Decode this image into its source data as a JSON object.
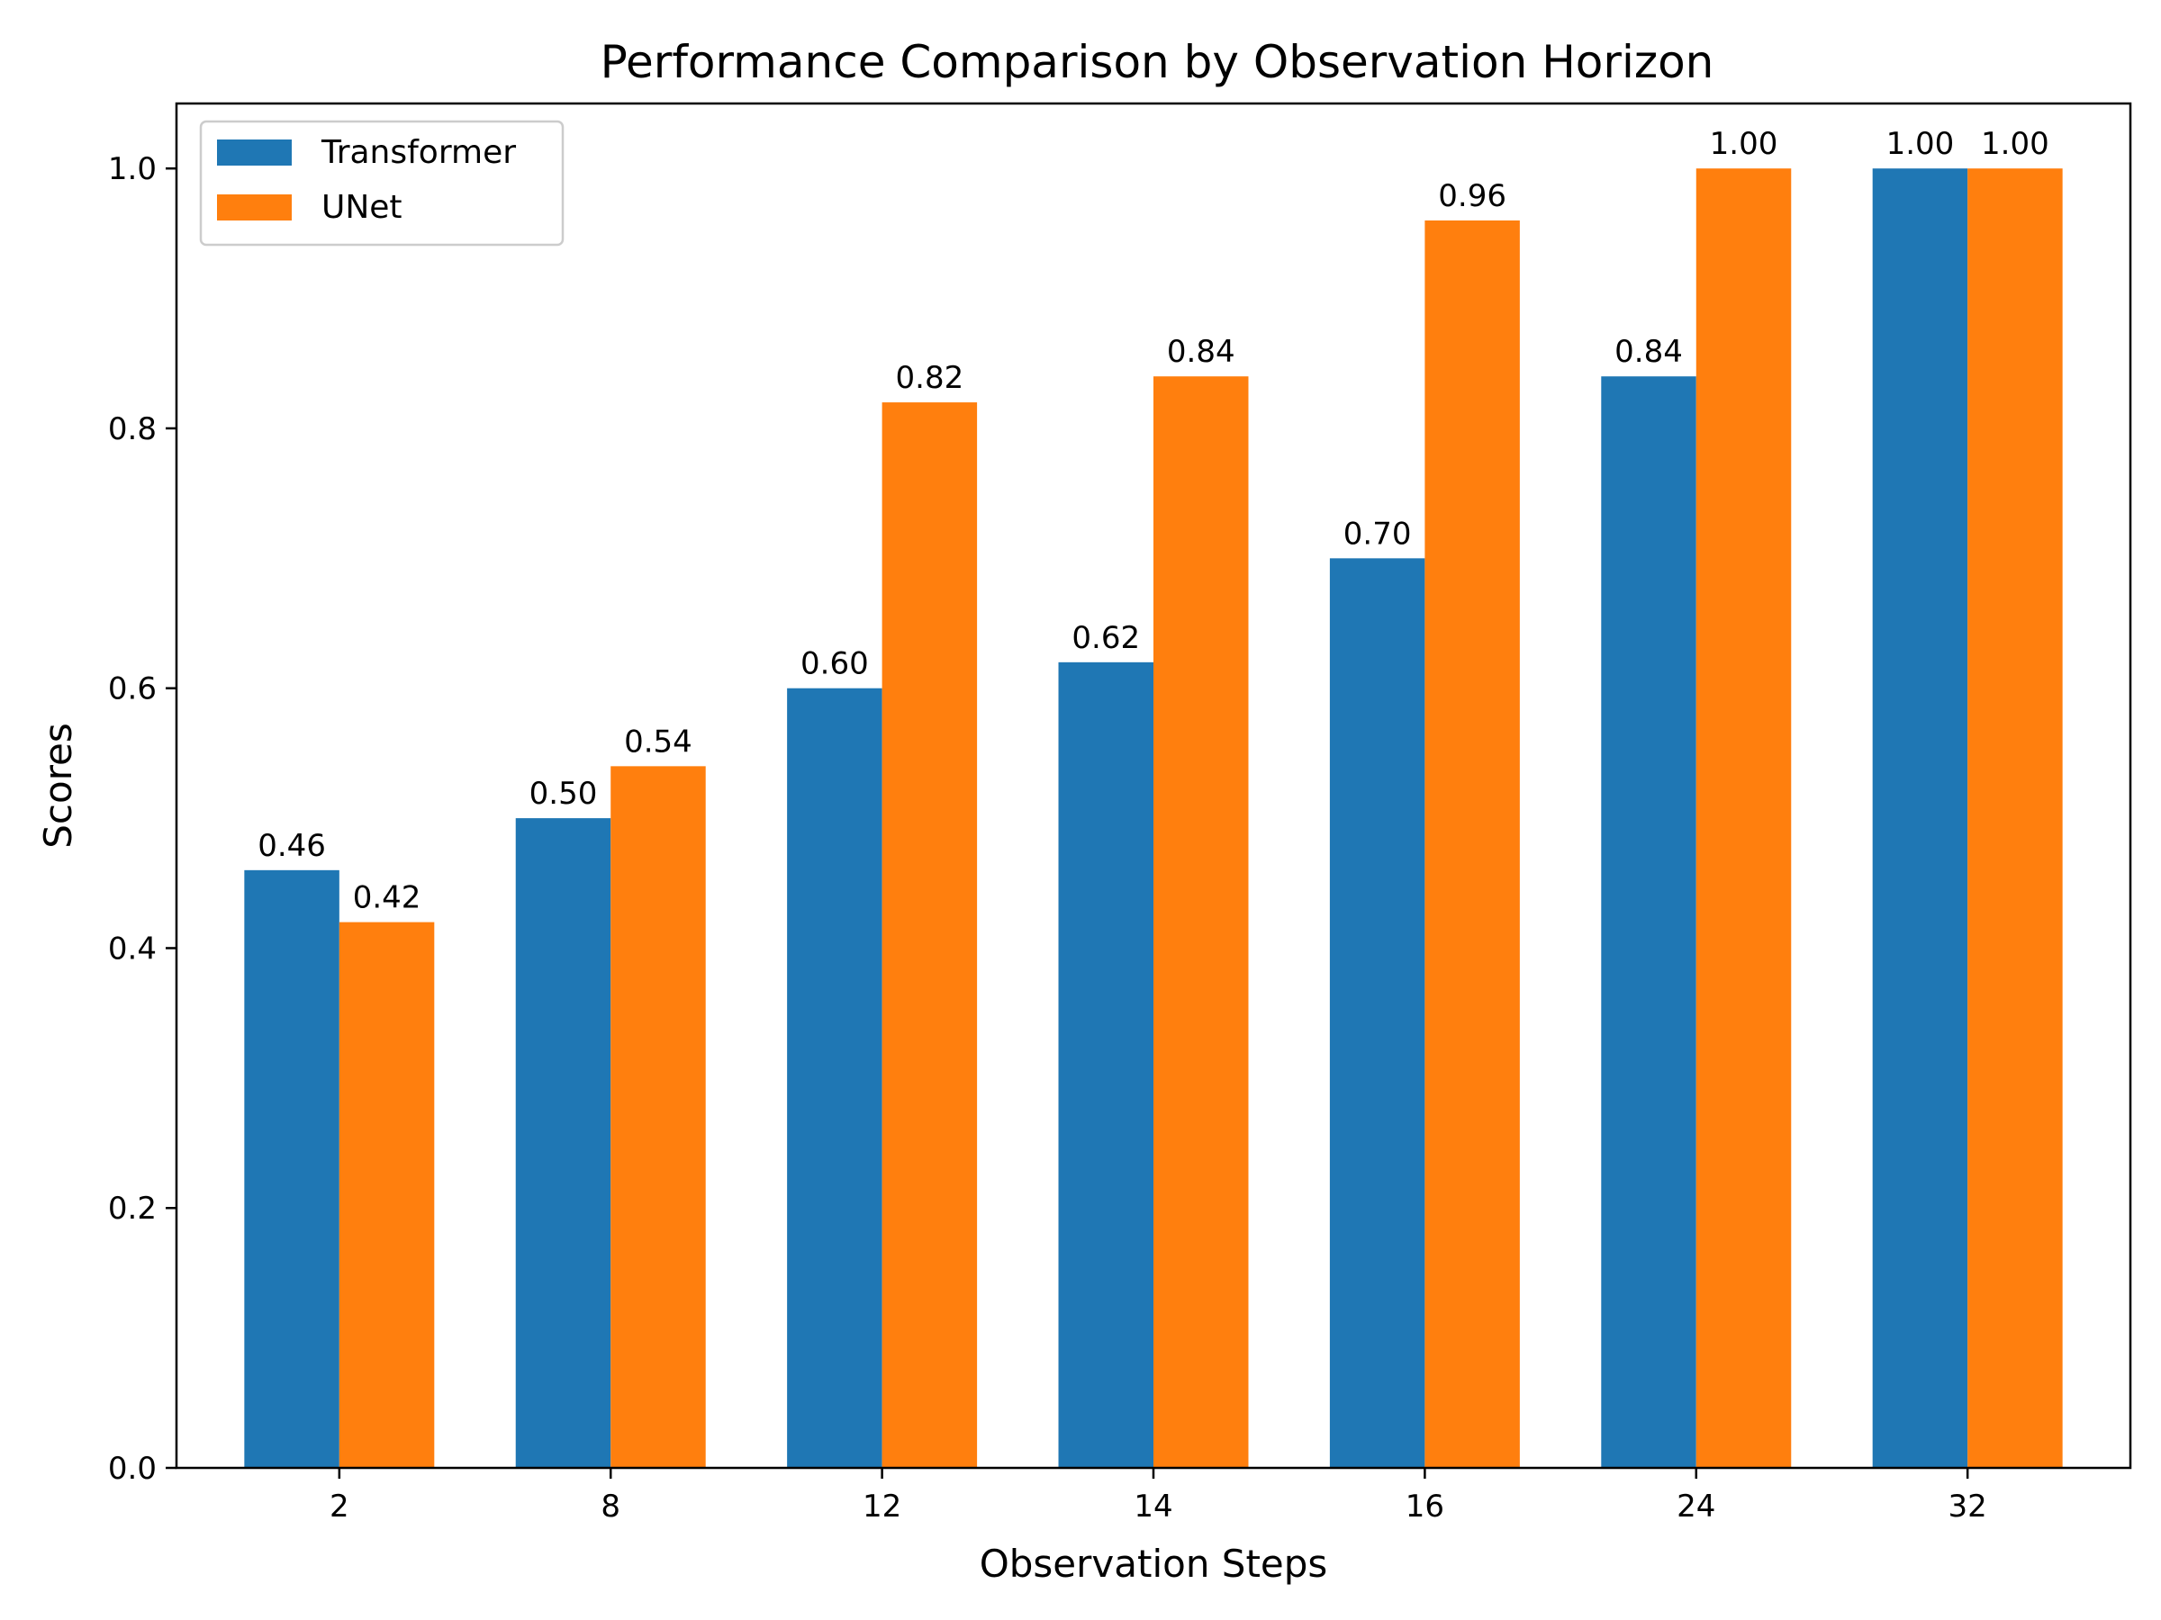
{
  "chart_data": {
    "type": "bar",
    "title": "Performance Comparison by Observation Horizon",
    "xlabel": "Observation Steps",
    "ylabel": "Scores",
    "categories": [
      "2",
      "8",
      "12",
      "14",
      "16",
      "24",
      "32"
    ],
    "series": [
      {
        "name": "Transformer",
        "color": "#1f77b4",
        "values": [
          0.46,
          0.5,
          0.6,
          0.62,
          0.7,
          0.84,
          1.0
        ],
        "labels": [
          "0.46",
          "0.50",
          "0.60",
          "0.62",
          "0.70",
          "0.84",
          "1.00"
        ]
      },
      {
        "name": "UNet",
        "color": "#ff7f0e",
        "values": [
          0.42,
          0.54,
          0.82,
          0.84,
          0.96,
          1.0,
          1.0
        ],
        "labels": [
          "0.42",
          "0.54",
          "0.82",
          "0.84",
          "0.96",
          "1.00",
          "1.00"
        ]
      }
    ],
    "ylim": [
      0,
      1.05
    ],
    "yticks": [
      "0.0",
      "0.2",
      "0.4",
      "0.6",
      "0.8",
      "1.0"
    ],
    "grid": false,
    "legend_position": "top-left"
  }
}
